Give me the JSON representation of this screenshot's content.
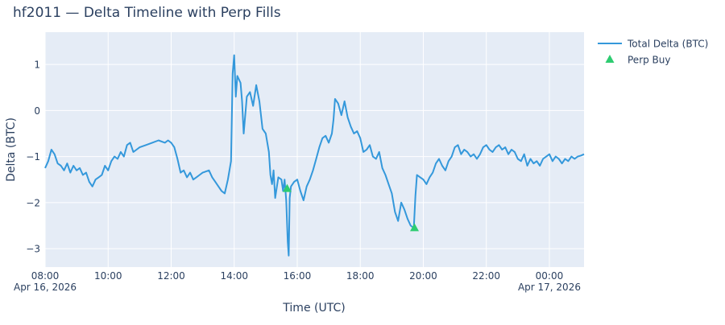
{
  "chart_data": {
    "type": "line",
    "title": "hf2011 — Delta Timeline with Perp Fills",
    "xlabel": "Time (UTC)",
    "ylabel": "Delta (BTC)",
    "x_unit": "hours since 2026-04-16 00:00 UTC",
    "xlim": [
      8.0,
      25.1
    ],
    "ylim": [
      -3.4,
      1.7
    ],
    "x_ticks": [
      {
        "x": 8,
        "label": "08:00",
        "sublabel": "Apr 16, 2026"
      },
      {
        "x": 10,
        "label": "10:00",
        "sublabel": ""
      },
      {
        "x": 12,
        "label": "12:00",
        "sublabel": ""
      },
      {
        "x": 14,
        "label": "14:00",
        "sublabel": ""
      },
      {
        "x": 16,
        "label": "16:00",
        "sublabel": ""
      },
      {
        "x": 18,
        "label": "18:00",
        "sublabel": ""
      },
      {
        "x": 20,
        "label": "20:00",
        "sublabel": ""
      },
      {
        "x": 22,
        "label": "22:00",
        "sublabel": ""
      },
      {
        "x": 24,
        "label": "00:00",
        "sublabel": "Apr 17, 2026"
      }
    ],
    "y_ticks": [
      {
        "y": 1,
        "label": "1"
      },
      {
        "y": 0,
        "label": "0"
      },
      {
        "y": -1,
        "label": "−1"
      },
      {
        "y": -2,
        "label": "−2"
      },
      {
        "y": -3,
        "label": "−3"
      }
    ],
    "series": [
      {
        "name": "Total Delta (BTC)",
        "kind": "line",
        "color": "#3498db",
        "points": [
          [
            8.0,
            -1.25
          ],
          [
            8.1,
            -1.1
          ],
          [
            8.2,
            -0.85
          ],
          [
            8.3,
            -0.95
          ],
          [
            8.4,
            -1.15
          ],
          [
            8.5,
            -1.2
          ],
          [
            8.6,
            -1.3
          ],
          [
            8.7,
            -1.15
          ],
          [
            8.8,
            -1.35
          ],
          [
            8.9,
            -1.2
          ],
          [
            9.0,
            -1.3
          ],
          [
            9.1,
            -1.25
          ],
          [
            9.2,
            -1.4
          ],
          [
            9.3,
            -1.35
          ],
          [
            9.4,
            -1.55
          ],
          [
            9.5,
            -1.65
          ],
          [
            9.6,
            -1.5
          ],
          [
            9.7,
            -1.45
          ],
          [
            9.8,
            -1.4
          ],
          [
            9.9,
            -1.2
          ],
          [
            10.0,
            -1.3
          ],
          [
            10.1,
            -1.1
          ],
          [
            10.2,
            -1.0
          ],
          [
            10.3,
            -1.05
          ],
          [
            10.4,
            -0.9
          ],
          [
            10.5,
            -1.0
          ],
          [
            10.6,
            -0.75
          ],
          [
            10.7,
            -0.7
          ],
          [
            10.8,
            -0.9
          ],
          [
            10.9,
            -0.85
          ],
          [
            11.0,
            -0.8
          ],
          [
            11.2,
            -0.75
          ],
          [
            11.4,
            -0.7
          ],
          [
            11.6,
            -0.65
          ],
          [
            11.8,
            -0.7
          ],
          [
            11.9,
            -0.65
          ],
          [
            12.0,
            -0.7
          ],
          [
            12.1,
            -0.8
          ],
          [
            12.2,
            -1.05
          ],
          [
            12.3,
            -1.35
          ],
          [
            12.4,
            -1.3
          ],
          [
            12.5,
            -1.45
          ],
          [
            12.6,
            -1.35
          ],
          [
            12.7,
            -1.5
          ],
          [
            12.8,
            -1.45
          ],
          [
            12.9,
            -1.4
          ],
          [
            13.0,
            -1.35
          ],
          [
            13.2,
            -1.3
          ],
          [
            13.3,
            -1.45
          ],
          [
            13.4,
            -1.55
          ],
          [
            13.5,
            -1.65
          ],
          [
            13.6,
            -1.75
          ],
          [
            13.7,
            -1.8
          ],
          [
            13.8,
            -1.5
          ],
          [
            13.9,
            -1.1
          ],
          [
            13.95,
            0.8
          ],
          [
            14.0,
            1.2
          ],
          [
            14.05,
            0.3
          ],
          [
            14.1,
            0.75
          ],
          [
            14.2,
            0.6
          ],
          [
            14.25,
            0.2
          ],
          [
            14.3,
            -0.5
          ],
          [
            14.4,
            0.3
          ],
          [
            14.5,
            0.4
          ],
          [
            14.6,
            0.1
          ],
          [
            14.7,
            0.55
          ],
          [
            14.8,
            0.2
          ],
          [
            14.9,
            -0.4
          ],
          [
            15.0,
            -0.5
          ],
          [
            15.1,
            -0.9
          ],
          [
            15.15,
            -1.4
          ],
          [
            15.2,
            -1.6
          ],
          [
            15.25,
            -1.3
          ],
          [
            15.3,
            -1.9
          ],
          [
            15.4,
            -1.45
          ],
          [
            15.5,
            -1.5
          ],
          [
            15.55,
            -1.75
          ],
          [
            15.6,
            -1.5
          ],
          [
            15.65,
            -1.95
          ],
          [
            15.7,
            -2.85
          ],
          [
            15.73,
            -3.15
          ],
          [
            15.76,
            -1.9
          ],
          [
            15.8,
            -1.65
          ],
          [
            15.9,
            -1.55
          ],
          [
            16.0,
            -1.5
          ],
          [
            16.1,
            -1.75
          ],
          [
            16.2,
            -1.95
          ],
          [
            16.3,
            -1.65
          ],
          [
            16.4,
            -1.5
          ],
          [
            16.5,
            -1.3
          ],
          [
            16.6,
            -1.05
          ],
          [
            16.7,
            -0.8
          ],
          [
            16.8,
            -0.6
          ],
          [
            16.9,
            -0.55
          ],
          [
            17.0,
            -0.7
          ],
          [
            17.1,
            -0.5
          ],
          [
            17.15,
            -0.2
          ],
          [
            17.2,
            0.25
          ],
          [
            17.3,
            0.15
          ],
          [
            17.4,
            -0.1
          ],
          [
            17.5,
            0.2
          ],
          [
            17.6,
            -0.15
          ],
          [
            17.7,
            -0.35
          ],
          [
            17.8,
            -0.5
          ],
          [
            17.9,
            -0.45
          ],
          [
            18.0,
            -0.6
          ],
          [
            18.1,
            -0.9
          ],
          [
            18.2,
            -0.85
          ],
          [
            18.3,
            -0.75
          ],
          [
            18.4,
            -1.0
          ],
          [
            18.5,
            -1.05
          ],
          [
            18.6,
            -0.9
          ],
          [
            18.7,
            -1.25
          ],
          [
            18.8,
            -1.4
          ],
          [
            18.9,
            -1.6
          ],
          [
            19.0,
            -1.8
          ],
          [
            19.1,
            -2.2
          ],
          [
            19.2,
            -2.4
          ],
          [
            19.3,
            -2.0
          ],
          [
            19.4,
            -2.15
          ],
          [
            19.5,
            -2.35
          ],
          [
            19.6,
            -2.5
          ],
          [
            19.7,
            -2.55
          ],
          [
            19.75,
            -1.85
          ],
          [
            19.8,
            -1.4
          ],
          [
            19.9,
            -1.45
          ],
          [
            20.0,
            -1.5
          ],
          [
            20.1,
            -1.6
          ],
          [
            20.2,
            -1.45
          ],
          [
            20.3,
            -1.35
          ],
          [
            20.4,
            -1.15
          ],
          [
            20.5,
            -1.05
          ],
          [
            20.6,
            -1.2
          ],
          [
            20.7,
            -1.3
          ],
          [
            20.8,
            -1.1
          ],
          [
            20.9,
            -1.0
          ],
          [
            21.0,
            -0.8
          ],
          [
            21.1,
            -0.75
          ],
          [
            21.2,
            -0.95
          ],
          [
            21.3,
            -0.85
          ],
          [
            21.4,
            -0.9
          ],
          [
            21.5,
            -1.0
          ],
          [
            21.6,
            -0.95
          ],
          [
            21.7,
            -1.05
          ],
          [
            21.8,
            -0.95
          ],
          [
            21.9,
            -0.8
          ],
          [
            22.0,
            -0.75
          ],
          [
            22.1,
            -0.85
          ],
          [
            22.2,
            -0.9
          ],
          [
            22.3,
            -0.8
          ],
          [
            22.4,
            -0.75
          ],
          [
            22.5,
            -0.85
          ],
          [
            22.6,
            -0.8
          ],
          [
            22.7,
            -0.95
          ],
          [
            22.8,
            -0.85
          ],
          [
            22.9,
            -0.9
          ],
          [
            23.0,
            -1.05
          ],
          [
            23.1,
            -1.1
          ],
          [
            23.2,
            -0.95
          ],
          [
            23.3,
            -1.2
          ],
          [
            23.4,
            -1.05
          ],
          [
            23.5,
            -1.15
          ],
          [
            23.6,
            -1.1
          ],
          [
            23.7,
            -1.2
          ],
          [
            23.8,
            -1.05
          ],
          [
            23.9,
            -1.0
          ],
          [
            24.0,
            -0.95
          ],
          [
            24.1,
            -1.1
          ],
          [
            24.2,
            -1.0
          ],
          [
            24.3,
            -1.05
          ],
          [
            24.4,
            -1.15
          ],
          [
            24.5,
            -1.05
          ],
          [
            24.6,
            -1.1
          ],
          [
            24.7,
            -1.0
          ],
          [
            24.8,
            -1.05
          ],
          [
            24.9,
            -1.0
          ],
          [
            25.0,
            -0.98
          ],
          [
            25.1,
            -0.95
          ]
        ]
      },
      {
        "name": "Perp Buy",
        "kind": "markers",
        "marker": "triangle-up",
        "color": "#2ecc71",
        "points": [
          [
            15.68,
            -1.7
          ],
          [
            19.72,
            -2.55
          ]
        ]
      }
    ],
    "grid": true,
    "legend_position": "top-right"
  }
}
